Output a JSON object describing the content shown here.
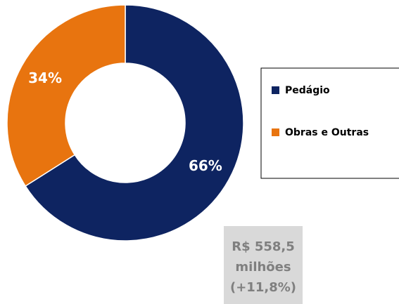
{
  "chart_data": {
    "type": "donut",
    "categories": [
      "Pedágio",
      "Obras e Outras"
    ],
    "values": [
      66,
      34
    ],
    "value_labels": [
      "66%",
      "34%"
    ],
    "colors": [
      "#0e2461",
      "#e8740f"
    ],
    "annotation": [
      "R$ 558,5",
      "milhões",
      "(+11,8%)"
    ]
  }
}
